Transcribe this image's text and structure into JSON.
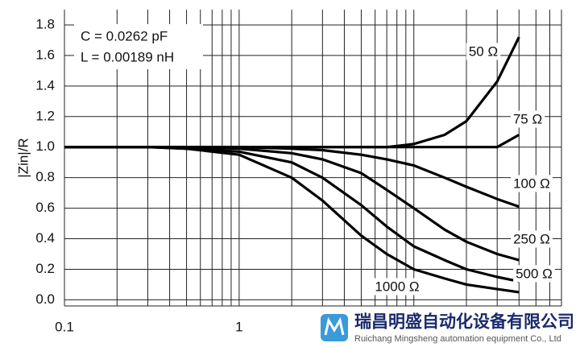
{
  "chart_data": {
    "type": "line",
    "y_label": "|Zin|/R",
    "annotations": [
      "C = 0.0262 pF",
      "L = 0.00189 nH"
    ],
    "log_x": true,
    "grid": true,
    "color": "#000000",
    "x": [
      0.1,
      0.3,
      0.5,
      1,
      2,
      3,
      5,
      7,
      10,
      15,
      20,
      30,
      40
    ],
    "series": [
      {
        "name": "50 Ω",
        "values": [
          1,
          1,
          1,
          1,
          1,
          1,
          1,
          1,
          1.02,
          1.08,
          1.17,
          1.43,
          1.72
        ]
      },
      {
        "name": "75 Ω",
        "values": [
          1,
          1,
          1,
          1,
          1,
          1,
          1,
          1,
          1,
          1,
          1,
          1,
          1.08
        ]
      },
      {
        "name": "100 Ω",
        "values": [
          1,
          1,
          1,
          1,
          0.99,
          0.98,
          0.95,
          0.92,
          0.88,
          0.8,
          0.74,
          0.66,
          0.61
        ]
      },
      {
        "name": "250 Ω",
        "values": [
          1,
          1,
          1,
          0.99,
          0.96,
          0.92,
          0.83,
          0.72,
          0.6,
          0.46,
          0.38,
          0.3,
          0.26
        ]
      },
      {
        "name": "500 Ω",
        "values": [
          1,
          1,
          0.99,
          0.97,
          0.9,
          0.8,
          0.62,
          0.48,
          0.35,
          0.26,
          0.2,
          0.15,
          0.12
        ]
      },
      {
        "name": "1000 Ω",
        "values": [
          1,
          1,
          0.99,
          0.95,
          0.8,
          0.65,
          0.42,
          0.3,
          0.2,
          0.14,
          0.1,
          0.07,
          0.05
        ]
      }
    ],
    "xlim": [
      0.1,
      70
    ],
    "xticks": [
      0.1,
      1
    ],
    "ylim": [
      -0.04,
      1.9
    ],
    "yticks": [
      {
        "value": 0,
        "label": "0.0"
      },
      {
        "value": 0.2,
        "label": "0.2"
      },
      {
        "value": 0.4,
        "label": "0.4"
      },
      {
        "value": 0.6,
        "label": "0.6"
      },
      {
        "value": 0.8,
        "label": "0.8"
      },
      {
        "value": 1,
        "label": "1.0"
      },
      {
        "value": 1.2,
        "label": "1.2"
      },
      {
        "value": 1.4,
        "label": "1.4"
      },
      {
        "value": 1.6,
        "label": "1.6"
      },
      {
        "value": 1.8,
        "label": "1.8"
      }
    ]
  },
  "watermark": {
    "title": "瑞昌明盛自动化设备有限公司",
    "subtitle": "Ruichang Mingsheng automation equipment Co., Ltd"
  }
}
